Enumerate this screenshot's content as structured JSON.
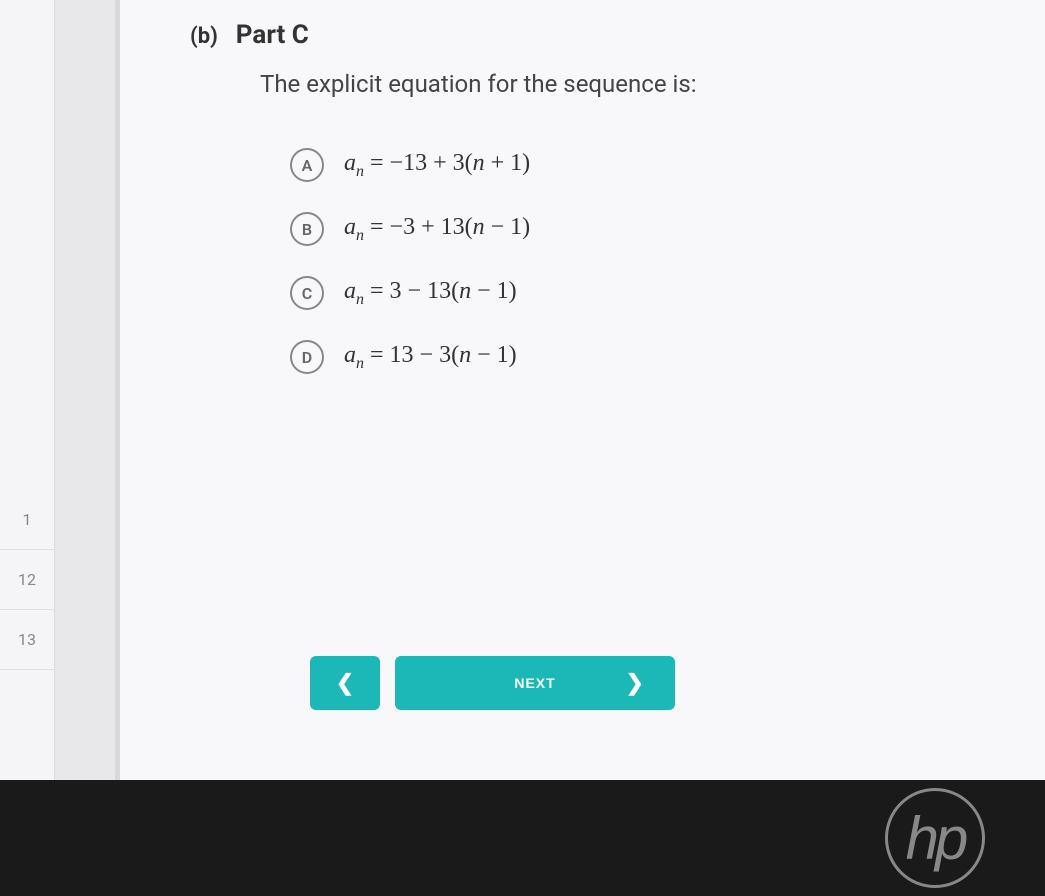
{
  "sidebar": {
    "items": [
      {
        "label": "1"
      },
      {
        "label": "12"
      },
      {
        "label": "13"
      }
    ]
  },
  "question": {
    "part_label": "(b)",
    "part_title": "Part C",
    "prompt": "The explicit equation for the sequence is:",
    "options": [
      {
        "letter": "A",
        "formula_html": "<span class='var'>a</span><sub>n</sub> = −13 + 3(<span class='var'>n</span> + 1)"
      },
      {
        "letter": "B",
        "formula_html": "<span class='var'>a</span><sub>n</sub> = −3 + 13(<span class='var'>n</span> − 1)"
      },
      {
        "letter": "C",
        "formula_html": "<span class='var'>a</span><sub>n</sub> = 3 − 13(<span class='var'>n</span> − 1)"
      },
      {
        "letter": "D",
        "formula_html": "<span class='var'>a</span><sub>n</sub> = 13 − 3(<span class='var'>n</span> − 1)"
      }
    ]
  },
  "nav": {
    "next_label": "NEXT"
  },
  "colors": {
    "accent": "#1cb8b8",
    "background": "#f8f8fa",
    "text": "#333333",
    "muted": "#888888"
  },
  "branding": {
    "logo": "hp"
  }
}
